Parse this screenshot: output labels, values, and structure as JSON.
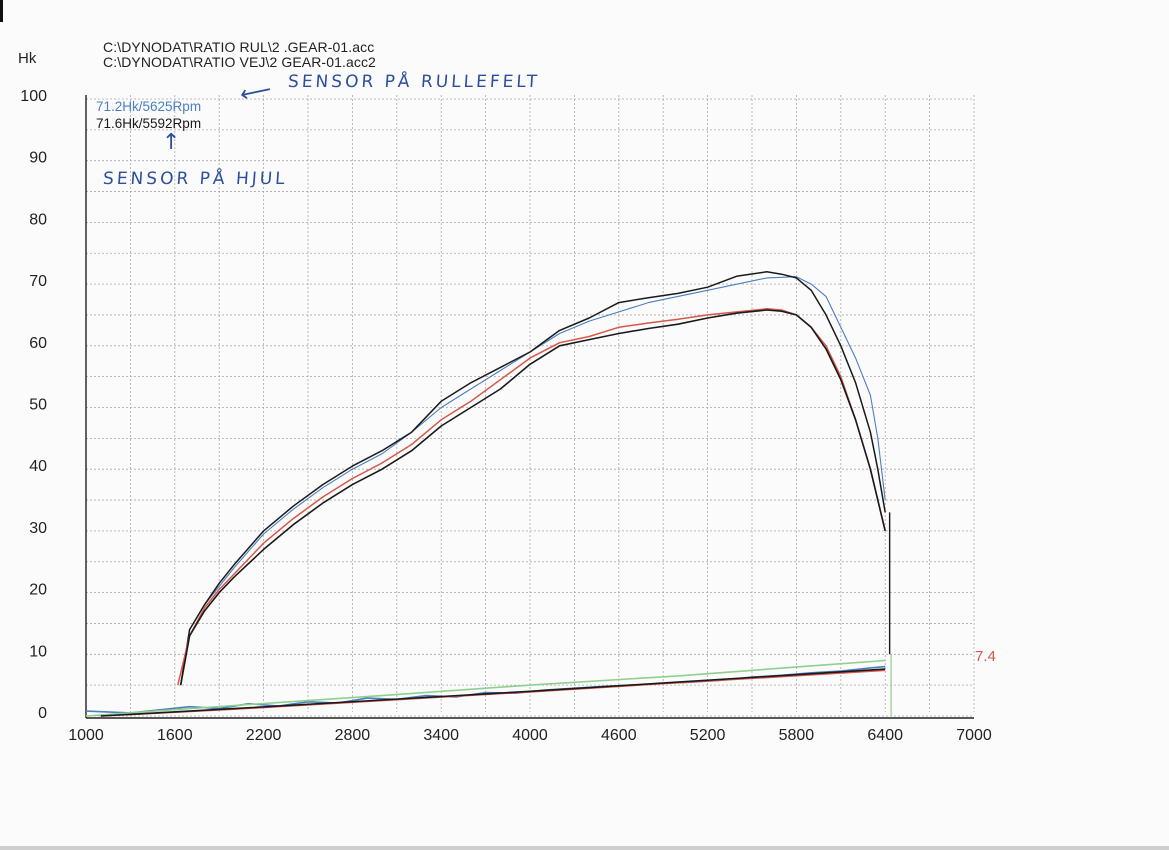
{
  "header": {
    "file1": "C:\\DYNODAT\\RATIO RUL\\2 .GEAR-01.acc",
    "file2": "C:\\DYNODAT\\RATIO VEJ\\2 GEAR-01.acc2"
  },
  "peaks": {
    "roller": "71.2Hk/5625Rpm",
    "wheel": "71.6Hk/5592Rpm"
  },
  "annotations": {
    "roller_note": "SENSOR PÅ RULLEFELT",
    "wheel_note": "SENSOR PÅ HJUL",
    "arrow_roller": "⟵",
    "arrow_wheel": "↑"
  },
  "end_value": "7.4",
  "colors": {
    "black": "#1a1a1a",
    "blue": "#4a7fc1",
    "red": "#d9574a",
    "green": "#8fd08f",
    "grid": "#a8a8a8",
    "ink": "#2c4f9e"
  },
  "chart_data": {
    "type": "line",
    "ylabel": "Hk",
    "xlim": [
      1000,
      7000
    ],
    "ylim": [
      0,
      100
    ],
    "xticks": [
      1000,
      1600,
      2200,
      2800,
      3400,
      4000,
      4600,
      5200,
      5800,
      6400,
      7000
    ],
    "yticks": [
      0,
      10,
      20,
      30,
      40,
      50,
      60,
      70,
      80,
      90,
      100
    ],
    "grid": true,
    "series": [
      {
        "id": "blue_power",
        "color": "#4a7fc1",
        "x": [
          1640,
          1700,
          1800,
          1900,
          2000,
          2200,
          2400,
          2600,
          2800,
          3000,
          3200,
          3400,
          3600,
          3800,
          4000,
          4200,
          4400,
          4600,
          4800,
          5000,
          5200,
          5400,
          5600,
          5800,
          5900,
          6000,
          6100,
          6200,
          6300,
          6350,
          6400
        ],
        "y": [
          5,
          14,
          18,
          21,
          24,
          29.5,
          33.5,
          37,
          40,
          42.5,
          46,
          50,
          53,
          56,
          59,
          62,
          64,
          65.5,
          67,
          68,
          69,
          70,
          71,
          71.2,
          70,
          68,
          63,
          58,
          52,
          45,
          35
        ]
      },
      {
        "id": "black_power_upper",
        "color": "#1a1a1a",
        "x": [
          1640,
          1700,
          1800,
          1900,
          2000,
          2200,
          2400,
          2600,
          2800,
          3000,
          3200,
          3400,
          3600,
          3800,
          4000,
          4200,
          4400,
          4600,
          4800,
          5000,
          5200,
          5400,
          5600,
          5700,
          5800,
          5900,
          6000,
          6100,
          6200,
          6300,
          6350,
          6400
        ],
        "y": [
          5,
          14,
          18,
          21.5,
          24.5,
          30,
          34,
          37.5,
          40.5,
          43,
          46,
          51,
          54,
          56.5,
          59,
          62.5,
          64.5,
          67,
          67.8,
          68.5,
          69.5,
          71.3,
          72,
          71.6,
          71,
          69,
          65,
          60,
          54,
          46,
          40,
          33
        ]
      },
      {
        "id": "red_power",
        "color": "#d9574a",
        "x": [
          1620,
          1700,
          1800,
          1900,
          2000,
          2200,
          2400,
          2600,
          2800,
          3000,
          3200,
          3400,
          3600,
          3800,
          4000,
          4200,
          4400,
          4600,
          4800,
          5000,
          5200,
          5400,
          5600,
          5700,
          5800,
          5900,
          6000,
          6100,
          6200,
          6300,
          6350,
          6400
        ],
        "y": [
          5,
          13,
          17.5,
          20.5,
          23,
          28,
          32,
          35.5,
          38.5,
          41,
          44,
          48,
          51,
          54.5,
          58,
          60.5,
          61.5,
          63,
          63.7,
          64.3,
          65,
          65.5,
          66,
          65.8,
          65,
          63,
          60,
          55,
          48,
          40,
          35,
          30
        ]
      },
      {
        "id": "black_power_lower",
        "color": "#1a1a1a",
        "x": [
          1640,
          1700,
          1800,
          1900,
          2000,
          2200,
          2400,
          2600,
          2800,
          3000,
          3200,
          3400,
          3600,
          3800,
          4000,
          4200,
          4400,
          4600,
          4800,
          5000,
          5200,
          5400,
          5600,
          5700,
          5800,
          5900,
          6000,
          6100,
          6200,
          6300,
          6350,
          6400
        ],
        "y": [
          5,
          13,
          17,
          20,
          22.5,
          27,
          31,
          34.5,
          37.5,
          40,
          43,
          47,
          50,
          53,
          57,
          60,
          61,
          62,
          62.8,
          63.5,
          64.5,
          65.3,
          65.8,
          65.6,
          65,
          63,
          59.5,
          54.5,
          48,
          40,
          35,
          30
        ]
      },
      {
        "id": "blue_low",
        "color": "#4a7fc1",
        "x": [
          1000,
          1300,
          1500,
          1700,
          1900,
          2100,
          2300,
          2500,
          2700,
          2900,
          3100,
          3300,
          3500,
          3700,
          3900,
          4100,
          4300,
          4500,
          4700,
          4900,
          5100,
          5300,
          5500,
          5700,
          5900,
          6100,
          6300,
          6400
        ],
        "y": [
          0.8,
          0.5,
          1.0,
          1.5,
          1.2,
          2.0,
          1.6,
          2.3,
          2.1,
          2.9,
          2.7,
          3.3,
          3.1,
          3.8,
          3.7,
          4.2,
          4.5,
          4.8,
          5.0,
          5.3,
          5.5,
          5.8,
          6.3,
          6.6,
          7.0,
          7.3,
          7.8,
          8.0
        ]
      },
      {
        "id": "green_low",
        "color": "#8fd08f",
        "x": [
          1000,
          2000,
          3000,
          4000,
          5000,
          6000,
          6400
        ],
        "y": [
          0,
          1.7,
          3.3,
          5.0,
          6.5,
          8.3,
          9.0
        ]
      },
      {
        "id": "red_low",
        "color": "#d9574a",
        "x": [
          1100,
          2000,
          3000,
          4000,
          5000,
          6000,
          6400
        ],
        "y": [
          0,
          1.1,
          2.5,
          3.9,
          5.4,
          6.8,
          7.4
        ]
      },
      {
        "id": "black_low",
        "color": "#1a1a1a",
        "x": [
          1100,
          2000,
          3000,
          4000,
          5000,
          6000,
          6400
        ],
        "y": [
          0,
          1.2,
          2.6,
          4.0,
          5.5,
          7.0,
          7.6
        ]
      }
    ]
  }
}
